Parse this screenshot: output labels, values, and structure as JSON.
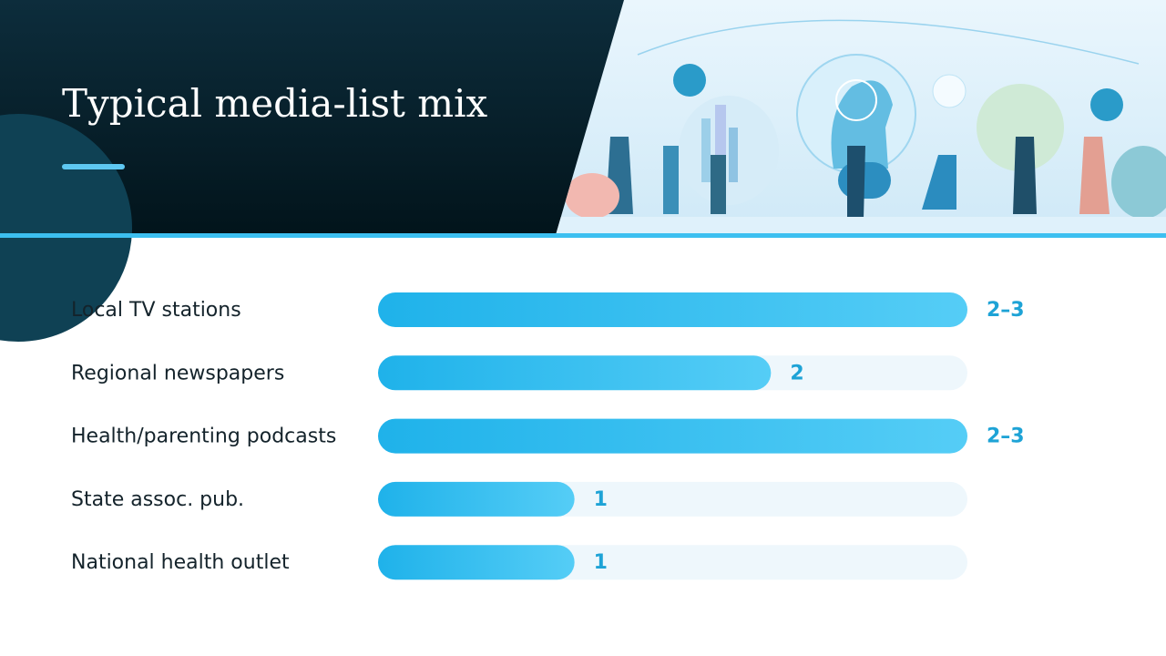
{
  "chart_data": {
    "type": "bar",
    "orientation": "horizontal",
    "title": "Typical media-list mix",
    "categories": [
      "Local TV stations",
      "Regional newspapers",
      "Health/parenting podcasts",
      "State assoc. pub.",
      "National health outlet"
    ],
    "values": [
      3,
      2,
      3,
      1,
      1
    ],
    "value_labels": [
      "2–3",
      "2",
      "2–3",
      "1",
      "1"
    ],
    "color": "#29b9ee",
    "xlim": [
      0,
      3
    ]
  }
}
